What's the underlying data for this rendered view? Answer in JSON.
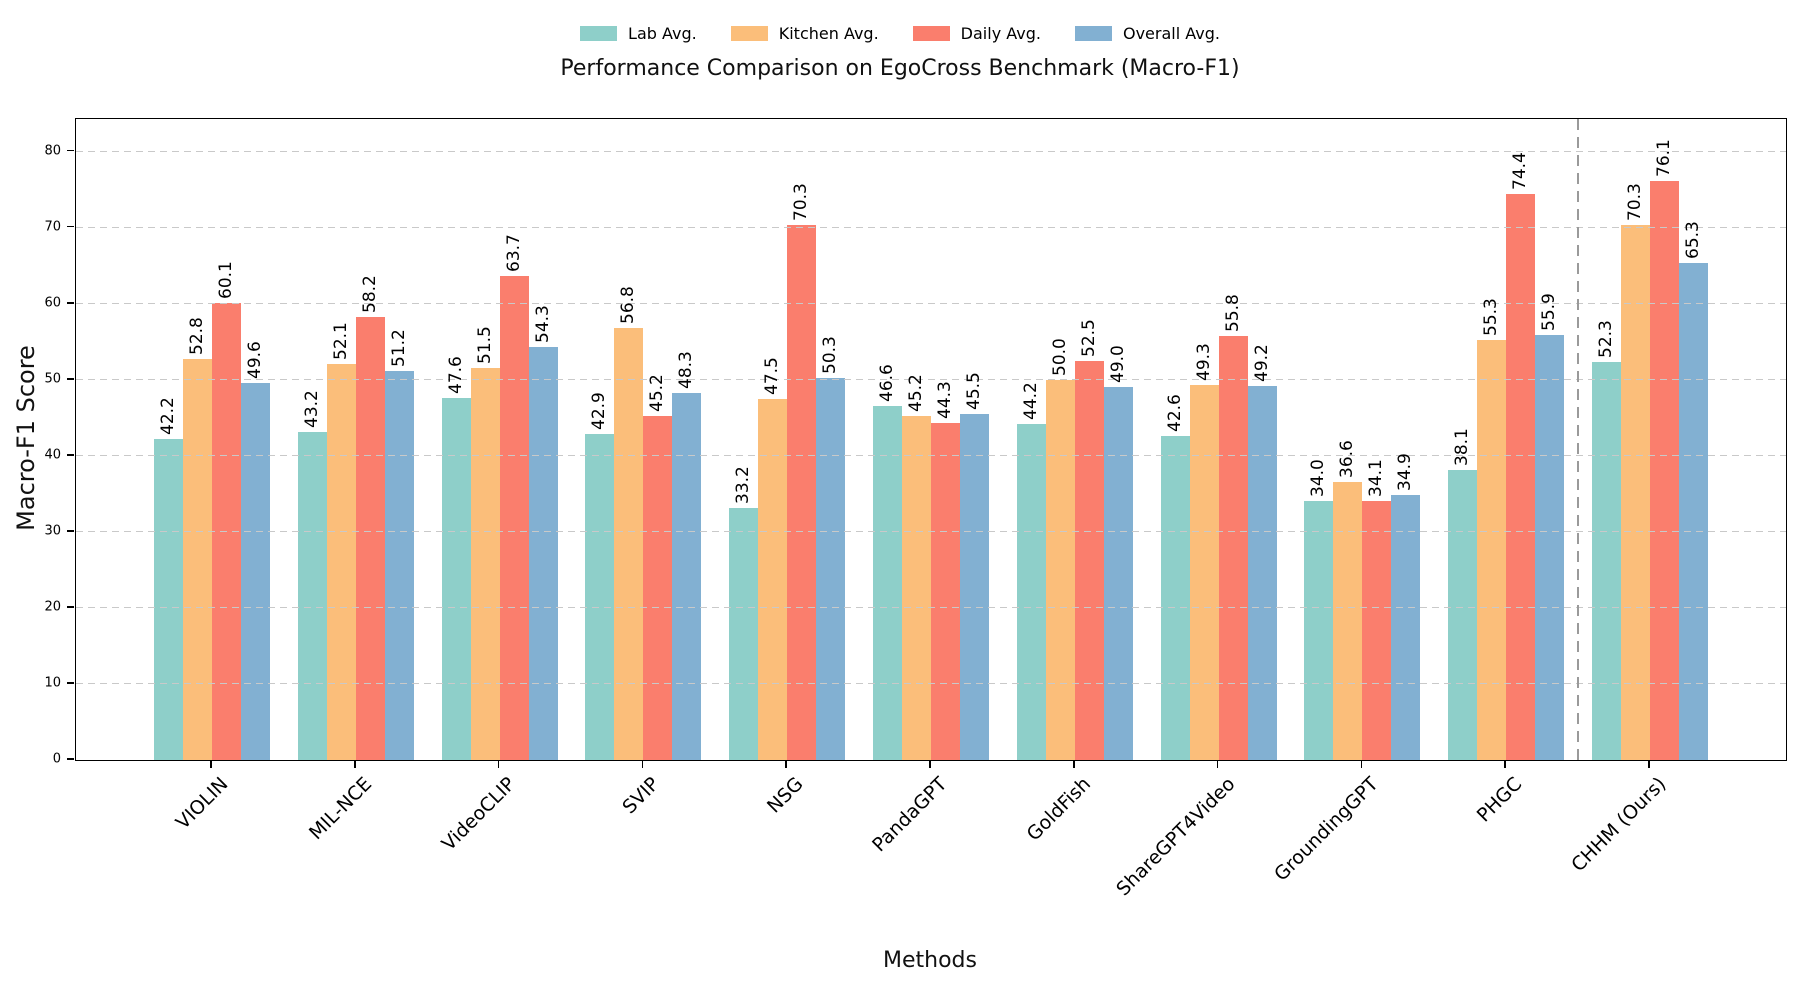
{
  "chart_data": {
    "type": "bar",
    "title": "Performance Comparison on EgoCross Benchmark (Macro-F1)",
    "xlabel": "Methods",
    "ylabel": "Macro-F1 Score",
    "categories": [
      "VIOLIN",
      "MIL-NCE",
      "VideoCLIP",
      "SVIP",
      "NSG",
      "PandaGPT",
      "GoldFish",
      "ShareGPT4Video",
      "GroundingGPT",
      "PHGC",
      "CHHM (Ours)"
    ],
    "series": [
      {
        "name": "Lab Avg.",
        "color": "#8ECFC9",
        "values": [
          42.2,
          43.2,
          47.6,
          42.9,
          33.2,
          46.6,
          44.2,
          42.6,
          34.0,
          38.1,
          52.3
        ]
      },
      {
        "name": "Kitchen Avg.",
        "color": "#FBBE7A",
        "values": [
          52.8,
          52.1,
          51.5,
          56.8,
          47.5,
          45.2,
          50.0,
          49.3,
          36.6,
          55.3,
          70.3
        ]
      },
      {
        "name": "Daily Avg.",
        "color": "#FA7E6D",
        "values": [
          60.1,
          58.2,
          63.7,
          45.2,
          70.3,
          44.3,
          52.5,
          55.8,
          34.1,
          74.4,
          76.1
        ]
      },
      {
        "name": "Overall Avg.",
        "color": "#82B0D2",
        "values": [
          49.6,
          51.2,
          54.3,
          48.3,
          50.3,
          45.5,
          49.0,
          49.2,
          34.9,
          55.9,
          65.3
        ]
      }
    ],
    "yticks": [
      0,
      10,
      20,
      30,
      40,
      50,
      60,
      70,
      80
    ],
    "ylim": [
      0,
      84.3
    ],
    "grid": "horizontal-dashed",
    "show_value_labels": true,
    "value_label_decimals": 1,
    "bar_label_rotation": 90,
    "x_tick_rotation": 45,
    "legend_position": "top-center",
    "separator": {
      "after_category": "PHGC",
      "style": "dashed-vertical"
    }
  }
}
